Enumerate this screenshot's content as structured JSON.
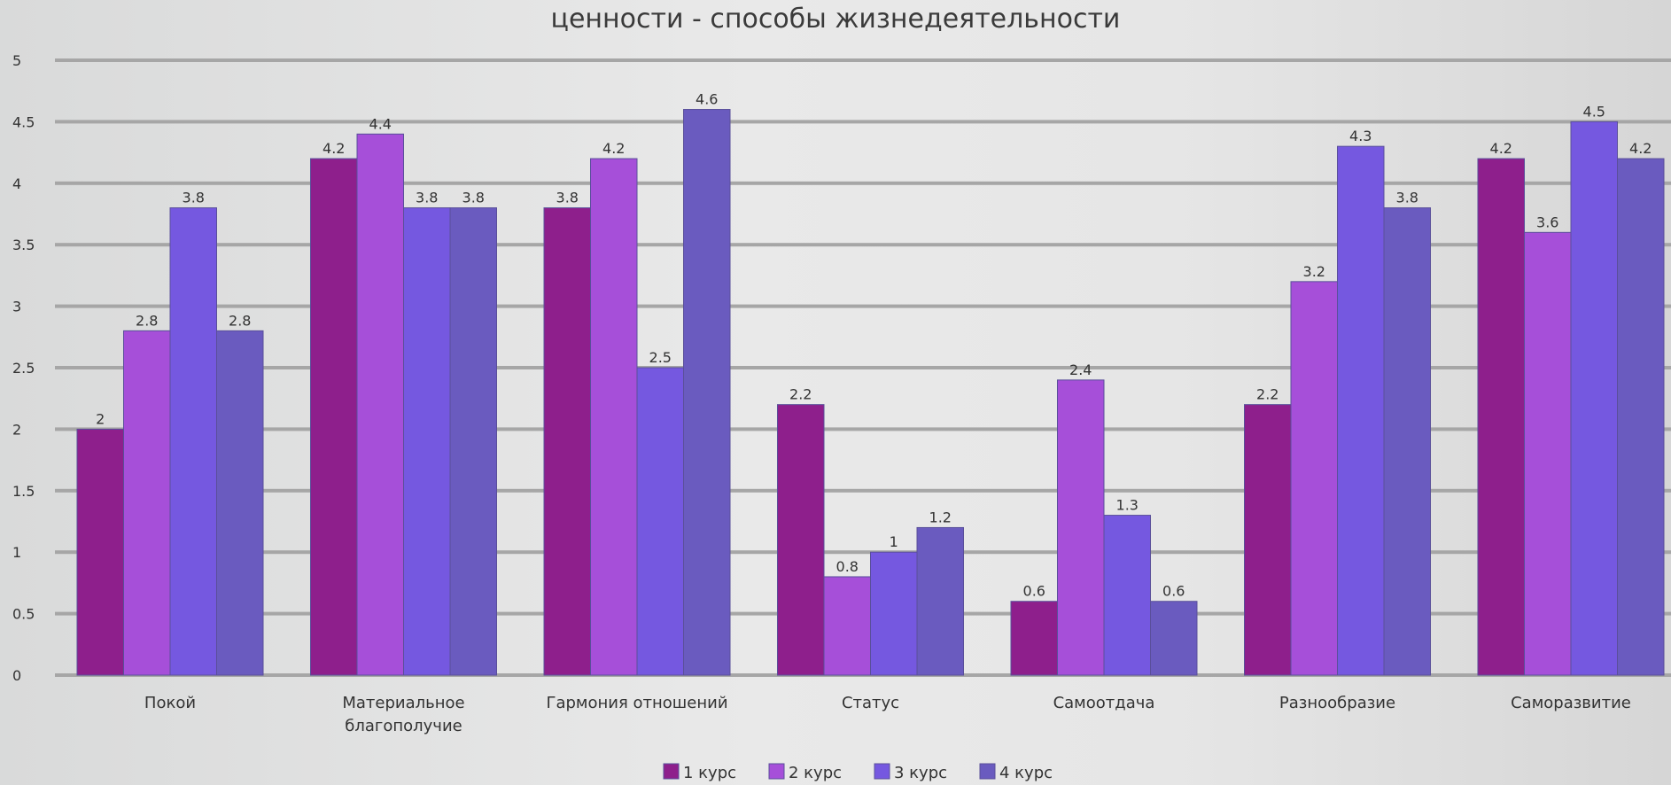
{
  "chart_data": {
    "type": "bar",
    "title": "ценности - способы жизнедеятельности",
    "categories": [
      "Покой",
      "Материальное благополучие",
      "Гармония отношений",
      "Статус",
      "Самоотдача",
      "Разнообразие",
      "Саморазвитие"
    ],
    "category_lines": [
      [
        "Покой"
      ],
      [
        "Материальное",
        "благополучие"
      ],
      [
        "Гармония отношений"
      ],
      [
        "Статус"
      ],
      [
        "Самоотдача"
      ],
      [
        "Разнообразие"
      ],
      [
        "Саморазвитие"
      ]
    ],
    "series": [
      {
        "name": "1 курс",
        "color": "#8e1f8c",
        "values": [
          2,
          4.2,
          3.8,
          2.2,
          0.6,
          2.2,
          4.2
        ]
      },
      {
        "name": "2 курс",
        "color": "#a64fd9",
        "values": [
          2.8,
          4.4,
          4.2,
          0.8,
          2.4,
          3.2,
          3.6
        ]
      },
      {
        "name": "3 курс",
        "color": "#7558e0",
        "values": [
          3.8,
          3.8,
          2.5,
          1,
          1.3,
          4.3,
          4.5
        ]
      },
      {
        "name": "4 курс",
        "color": "#6a5bbf",
        "values": [
          2.8,
          3.8,
          4.6,
          1.2,
          0.6,
          3.8,
          4.2
        ]
      }
    ],
    "yticks": [
      0,
      0.5,
      1,
      1.5,
      2,
      2.5,
      3,
      3.5,
      4,
      4.5,
      5
    ],
    "ylim": [
      0,
      5
    ],
    "grid": true,
    "legend_position": "bottom"
  }
}
